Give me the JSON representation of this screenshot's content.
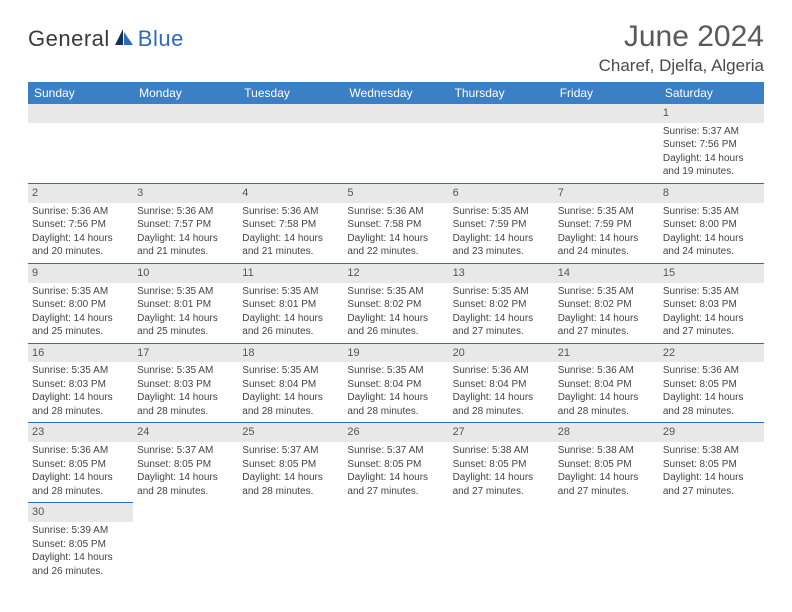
{
  "logo": {
    "part1": "General",
    "part2": "Blue"
  },
  "title": "June 2024",
  "location": "Charef, Djelfa, Algeria",
  "colors": {
    "header_bg": "#3b7fc4",
    "header_text": "#ffffff",
    "rule": "#2a6db8",
    "daynum_bg": "#e8e8e8",
    "logo_blue": "#2a6db8",
    "body_text": "#444444"
  },
  "weekdays": [
    "Sunday",
    "Monday",
    "Tuesday",
    "Wednesday",
    "Thursday",
    "Friday",
    "Saturday"
  ],
  "weeks": [
    [
      null,
      null,
      null,
      null,
      null,
      null,
      {
        "n": "1",
        "sr": "Sunrise: 5:37 AM",
        "ss": "Sunset: 7:56 PM",
        "d1": "Daylight: 14 hours",
        "d2": "and 19 minutes."
      }
    ],
    [
      {
        "n": "2",
        "sr": "Sunrise: 5:36 AM",
        "ss": "Sunset: 7:56 PM",
        "d1": "Daylight: 14 hours",
        "d2": "and 20 minutes."
      },
      {
        "n": "3",
        "sr": "Sunrise: 5:36 AM",
        "ss": "Sunset: 7:57 PM",
        "d1": "Daylight: 14 hours",
        "d2": "and 21 minutes."
      },
      {
        "n": "4",
        "sr": "Sunrise: 5:36 AM",
        "ss": "Sunset: 7:58 PM",
        "d1": "Daylight: 14 hours",
        "d2": "and 21 minutes."
      },
      {
        "n": "5",
        "sr": "Sunrise: 5:36 AM",
        "ss": "Sunset: 7:58 PM",
        "d1": "Daylight: 14 hours",
        "d2": "and 22 minutes."
      },
      {
        "n": "6",
        "sr": "Sunrise: 5:35 AM",
        "ss": "Sunset: 7:59 PM",
        "d1": "Daylight: 14 hours",
        "d2": "and 23 minutes."
      },
      {
        "n": "7",
        "sr": "Sunrise: 5:35 AM",
        "ss": "Sunset: 7:59 PM",
        "d1": "Daylight: 14 hours",
        "d2": "and 24 minutes."
      },
      {
        "n": "8",
        "sr": "Sunrise: 5:35 AM",
        "ss": "Sunset: 8:00 PM",
        "d1": "Daylight: 14 hours",
        "d2": "and 24 minutes."
      }
    ],
    [
      {
        "n": "9",
        "sr": "Sunrise: 5:35 AM",
        "ss": "Sunset: 8:00 PM",
        "d1": "Daylight: 14 hours",
        "d2": "and 25 minutes."
      },
      {
        "n": "10",
        "sr": "Sunrise: 5:35 AM",
        "ss": "Sunset: 8:01 PM",
        "d1": "Daylight: 14 hours",
        "d2": "and 25 minutes."
      },
      {
        "n": "11",
        "sr": "Sunrise: 5:35 AM",
        "ss": "Sunset: 8:01 PM",
        "d1": "Daylight: 14 hours",
        "d2": "and 26 minutes."
      },
      {
        "n": "12",
        "sr": "Sunrise: 5:35 AM",
        "ss": "Sunset: 8:02 PM",
        "d1": "Daylight: 14 hours",
        "d2": "and 26 minutes."
      },
      {
        "n": "13",
        "sr": "Sunrise: 5:35 AM",
        "ss": "Sunset: 8:02 PM",
        "d1": "Daylight: 14 hours",
        "d2": "and 27 minutes."
      },
      {
        "n": "14",
        "sr": "Sunrise: 5:35 AM",
        "ss": "Sunset: 8:02 PM",
        "d1": "Daylight: 14 hours",
        "d2": "and 27 minutes."
      },
      {
        "n": "15",
        "sr": "Sunrise: 5:35 AM",
        "ss": "Sunset: 8:03 PM",
        "d1": "Daylight: 14 hours",
        "d2": "and 27 minutes."
      }
    ],
    [
      {
        "n": "16",
        "sr": "Sunrise: 5:35 AM",
        "ss": "Sunset: 8:03 PM",
        "d1": "Daylight: 14 hours",
        "d2": "and 28 minutes."
      },
      {
        "n": "17",
        "sr": "Sunrise: 5:35 AM",
        "ss": "Sunset: 8:03 PM",
        "d1": "Daylight: 14 hours",
        "d2": "and 28 minutes."
      },
      {
        "n": "18",
        "sr": "Sunrise: 5:35 AM",
        "ss": "Sunset: 8:04 PM",
        "d1": "Daylight: 14 hours",
        "d2": "and 28 minutes."
      },
      {
        "n": "19",
        "sr": "Sunrise: 5:35 AM",
        "ss": "Sunset: 8:04 PM",
        "d1": "Daylight: 14 hours",
        "d2": "and 28 minutes."
      },
      {
        "n": "20",
        "sr": "Sunrise: 5:36 AM",
        "ss": "Sunset: 8:04 PM",
        "d1": "Daylight: 14 hours",
        "d2": "and 28 minutes."
      },
      {
        "n": "21",
        "sr": "Sunrise: 5:36 AM",
        "ss": "Sunset: 8:04 PM",
        "d1": "Daylight: 14 hours",
        "d2": "and 28 minutes."
      },
      {
        "n": "22",
        "sr": "Sunrise: 5:36 AM",
        "ss": "Sunset: 8:05 PM",
        "d1": "Daylight: 14 hours",
        "d2": "and 28 minutes."
      }
    ],
    [
      {
        "n": "23",
        "sr": "Sunrise: 5:36 AM",
        "ss": "Sunset: 8:05 PM",
        "d1": "Daylight: 14 hours",
        "d2": "and 28 minutes."
      },
      {
        "n": "24",
        "sr": "Sunrise: 5:37 AM",
        "ss": "Sunset: 8:05 PM",
        "d1": "Daylight: 14 hours",
        "d2": "and 28 minutes."
      },
      {
        "n": "25",
        "sr": "Sunrise: 5:37 AM",
        "ss": "Sunset: 8:05 PM",
        "d1": "Daylight: 14 hours",
        "d2": "and 28 minutes."
      },
      {
        "n": "26",
        "sr": "Sunrise: 5:37 AM",
        "ss": "Sunset: 8:05 PM",
        "d1": "Daylight: 14 hours",
        "d2": "and 27 minutes."
      },
      {
        "n": "27",
        "sr": "Sunrise: 5:38 AM",
        "ss": "Sunset: 8:05 PM",
        "d1": "Daylight: 14 hours",
        "d2": "and 27 minutes."
      },
      {
        "n": "28",
        "sr": "Sunrise: 5:38 AM",
        "ss": "Sunset: 8:05 PM",
        "d1": "Daylight: 14 hours",
        "d2": "and 27 minutes."
      },
      {
        "n": "29",
        "sr": "Sunrise: 5:38 AM",
        "ss": "Sunset: 8:05 PM",
        "d1": "Daylight: 14 hours",
        "d2": "and 27 minutes."
      }
    ],
    [
      {
        "n": "30",
        "sr": "Sunrise: 5:39 AM",
        "ss": "Sunset: 8:05 PM",
        "d1": "Daylight: 14 hours",
        "d2": "and 26 minutes."
      },
      null,
      null,
      null,
      null,
      null,
      null
    ]
  ]
}
